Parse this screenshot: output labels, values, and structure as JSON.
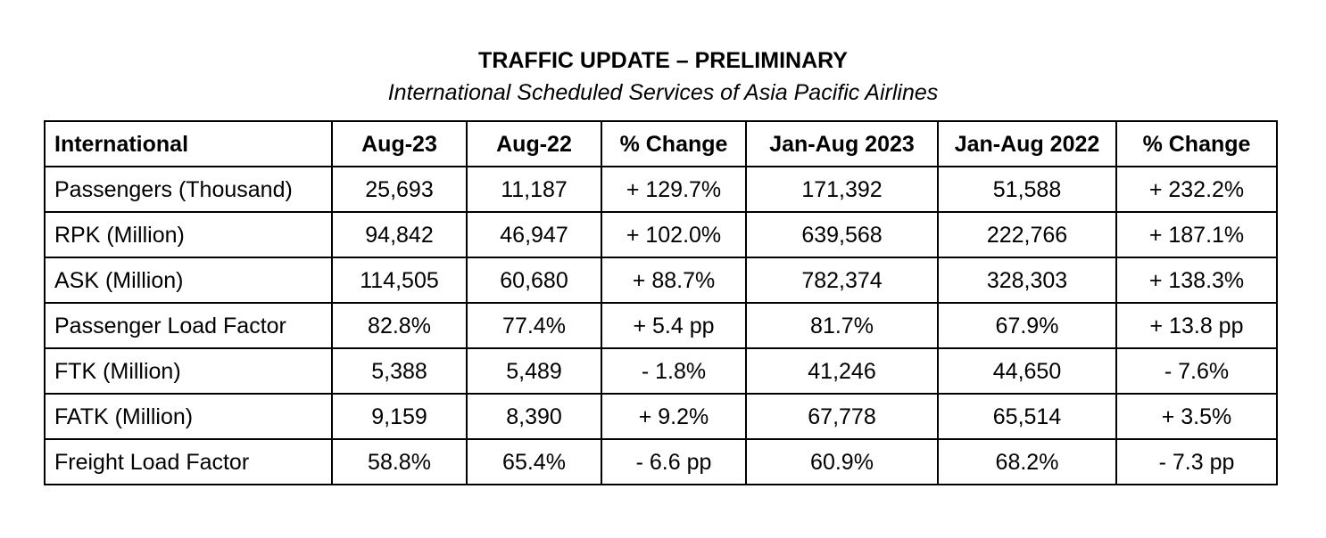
{
  "header": {
    "title": "TRAFFIC UPDATE – PRELIMINARY",
    "subtitle": "International Scheduled Services of Asia Pacific Airlines"
  },
  "table": {
    "columns": [
      "International",
      "Aug-23",
      "Aug-22",
      "% Change",
      "Jan-Aug 2023",
      "Jan-Aug 2022",
      "% Change"
    ],
    "rows": [
      [
        "Passengers (Thousand)",
        "25,693",
        "11,187",
        "+ 129.7%",
        "171,392",
        "51,588",
        "+ 232.2%"
      ],
      [
        "RPK (Million)",
        "94,842",
        "46,947",
        "+ 102.0%",
        "639,568",
        "222,766",
        "+ 187.1%"
      ],
      [
        "ASK (Million)",
        "114,505",
        "60,680",
        "+ 88.7%",
        "782,374",
        "328,303",
        "+ 138.3%"
      ],
      [
        "Passenger Load Factor",
        "82.8%",
        "77.4%",
        "+ 5.4 pp",
        "81.7%",
        "67.9%",
        "+ 13.8 pp"
      ],
      [
        "FTK (Million)",
        "5,388",
        "5,489",
        "- 1.8%",
        "41,246",
        "44,650",
        "- 7.6%"
      ],
      [
        "FATK (Million)",
        "9,159",
        "8,390",
        "+ 9.2%",
        "67,778",
        "65,514",
        "+ 3.5%"
      ],
      [
        "Freight Load Factor",
        "58.8%",
        "65.4%",
        "- 6.6 pp",
        "60.9%",
        "68.2%",
        "- 7.3 pp"
      ]
    ]
  }
}
